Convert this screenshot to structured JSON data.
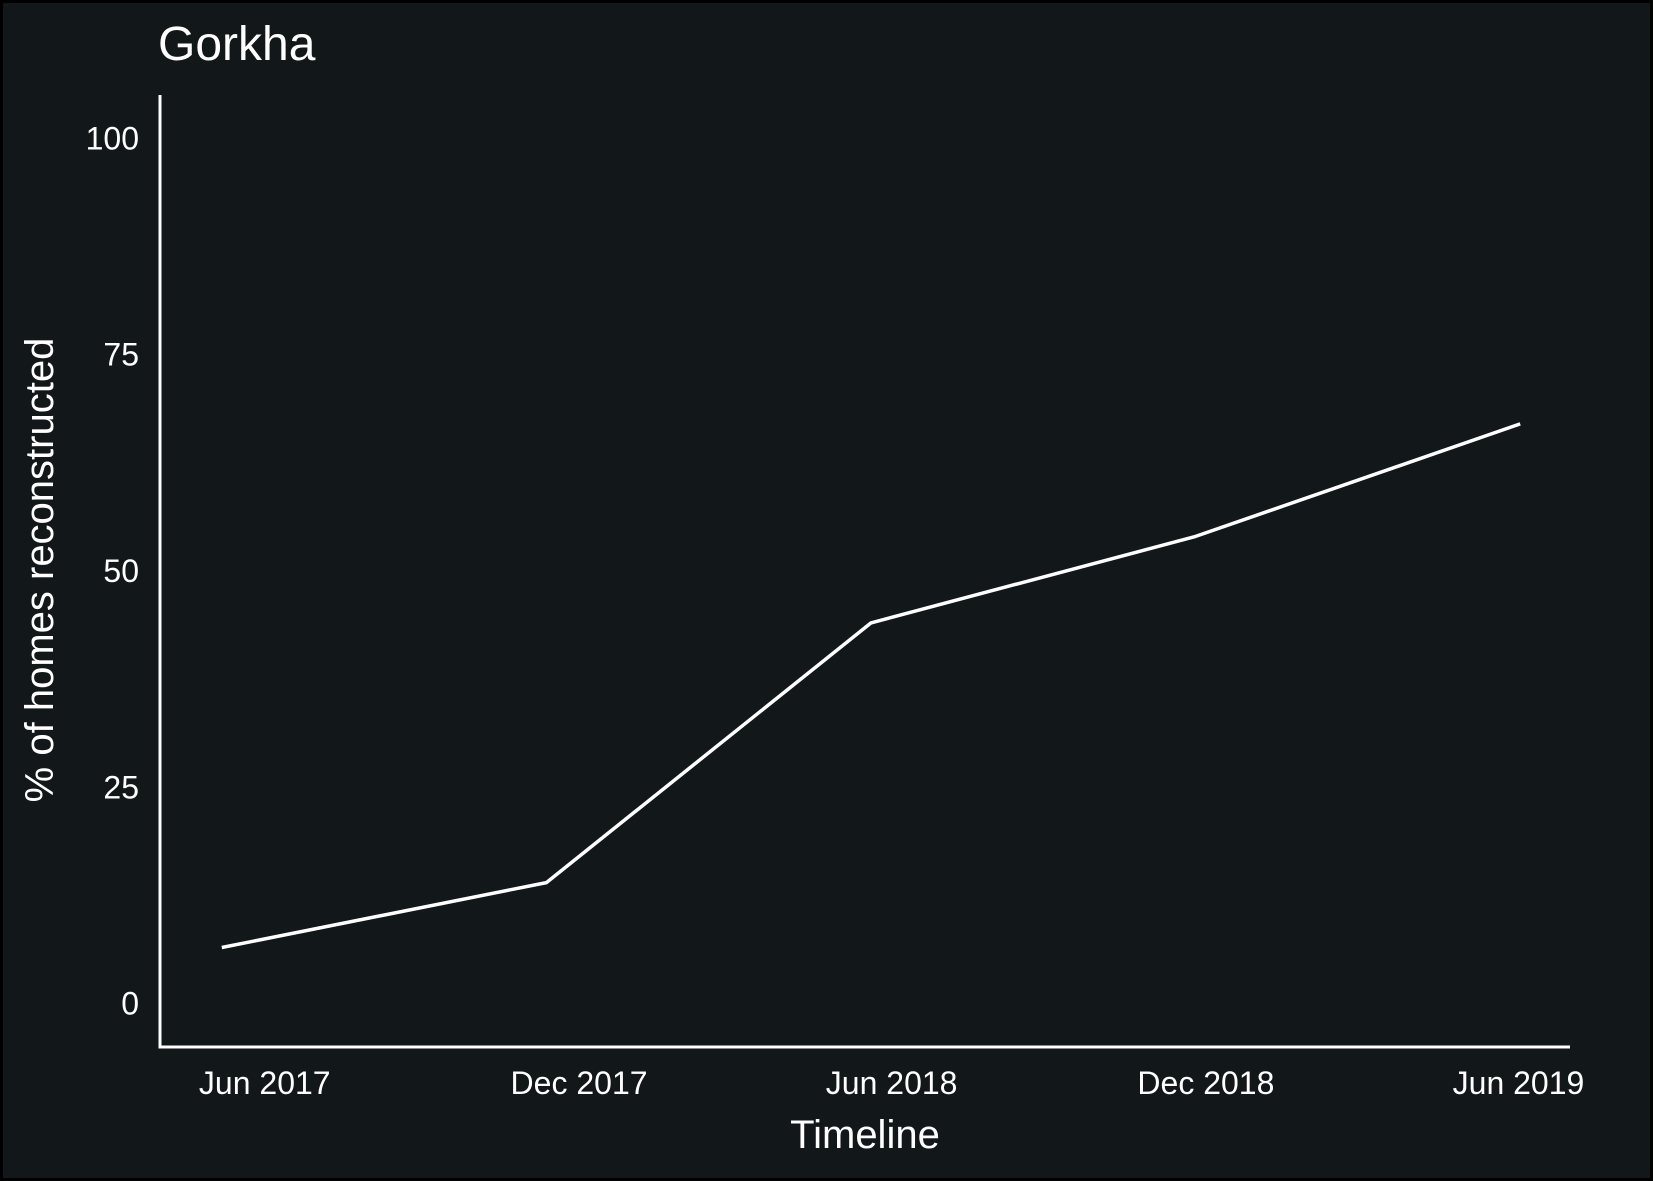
{
  "chart_data": {
    "type": "line",
    "title": "Gorkha",
    "xlabel": "Timeline",
    "ylabel": "% of homes reconstructed",
    "x_tick_labels": [
      "Jun 2017",
      "Dec 2017",
      "Jun 2018",
      "Dec 2018",
      "Jun 2019"
    ],
    "x_ticks": [
      "2017-06-01",
      "2017-12-01",
      "2018-06-01",
      "2018-12-01",
      "2019-06-01"
    ],
    "xlim": [
      "2017-04-01",
      "2019-07-01"
    ],
    "y_ticks": [
      0,
      25,
      50,
      75,
      100
    ],
    "ylim": [
      -5,
      105
    ],
    "grid": false,
    "series": [
      {
        "x": [
          "2017-05-07",
          "2017-11-12",
          "2018-05-20",
          "2018-11-25",
          "2019-06-02"
        ],
        "y": [
          6.5,
          14,
          44,
          54,
          67
        ]
      }
    ],
    "colors": {
      "background": "#12171a",
      "frame": "#000000",
      "line": "#ffffff",
      "axis": "#ffffff",
      "text": "#ffffff"
    }
  }
}
